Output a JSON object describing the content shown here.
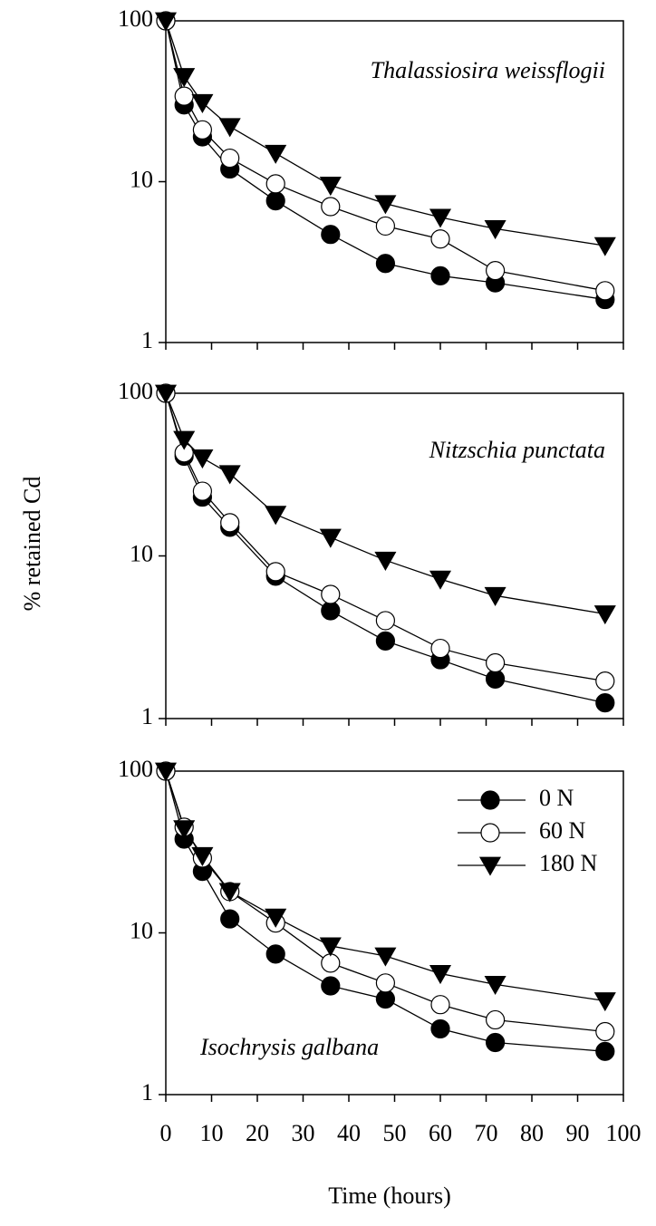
{
  "chart_data": [
    {
      "type": "line",
      "title": "Thalassiosira weissflogii",
      "title_loc": "upper right",
      "x": [
        0,
        4,
        8,
        14,
        24,
        36,
        48,
        60,
        72,
        96
      ],
      "series": [
        {
          "color": "#000000",
          "marker": "o",
          "values": [
            100,
            30,
            19,
            12,
            7.6,
            4.7,
            3.1,
            2.6,
            2.35,
            1.85
          ]
        },
        {
          "color": "#ffffff",
          "marker": "o",
          "values": [
            100,
            34,
            21,
            14,
            9.7,
            7,
            5.3,
            4.4,
            2.8,
            2.1
          ]
        },
        {
          "color": "#000000",
          "marker": "v",
          "values": [
            100,
            45,
            31,
            22,
            15,
            9.5,
            7.3,
            6,
            5.1,
            4
          ]
        }
      ],
      "xlim": [
        0,
        100
      ],
      "xticks": [
        0,
        10,
        20,
        30,
        40,
        50,
        60,
        70,
        80,
        90,
        100
      ],
      "ylim": [
        1,
        100
      ],
      "yticks": [
        1,
        10,
        100
      ],
      "log_y": true
    },
    {
      "type": "line",
      "title": "Nitzschia punctata",
      "title_loc": "upper right",
      "ylabel": "% retained Cd",
      "x": [
        0,
        4,
        8,
        14,
        24,
        36,
        48,
        60,
        72,
        96
      ],
      "series": [
        {
          "color": "#000000",
          "marker": "o",
          "values": [
            100,
            41,
            23,
            15,
            7.5,
            4.6,
            3,
            2.3,
            1.75,
            1.25
          ]
        },
        {
          "color": "#ffffff",
          "marker": "o",
          "values": [
            100,
            43,
            25,
            16,
            8,
            5.8,
            4,
            2.7,
            2.2,
            1.7
          ]
        },
        {
          "color": "#000000",
          "marker": "v",
          "values": [
            100,
            52,
            40,
            32,
            18,
            13,
            9.4,
            7.2,
            5.7,
            4.4
          ]
        }
      ],
      "xlim": [
        0,
        100
      ],
      "xticks": [
        0,
        10,
        20,
        30,
        40,
        50,
        60,
        70,
        80,
        90,
        100
      ],
      "ylim": [
        1,
        100
      ],
      "yticks": [
        1,
        10,
        100
      ],
      "log_y": true
    },
    {
      "type": "line",
      "title": "Isochrysis galbana",
      "title_loc": "lower left",
      "xlabel": "Time (hours)",
      "legend": "upper right",
      "x": [
        0,
        4,
        8,
        14,
        24,
        36,
        48,
        60,
        72,
        96
      ],
      "series": [
        {
          "name": "0 N",
          "color": "#000000",
          "marker": "o",
          "values": [
            100,
            38,
            24,
            12.2,
            7.4,
            4.7,
            3.9,
            2.55,
            2.1,
            1.85
          ]
        },
        {
          "name": "60 N",
          "color": "#ffffff",
          "marker": "o",
          "values": [
            100,
            45,
            29,
            18,
            11.5,
            6.5,
            4.9,
            3.6,
            2.9,
            2.45
          ]
        },
        {
          "name": "180 N",
          "color": "#000000",
          "marker": "v",
          "values": [
            100,
            44,
            30,
            18,
            12.5,
            8.3,
            7.2,
            5.6,
            4.8,
            3.8
          ]
        }
      ],
      "xlim": [
        0,
        100
      ],
      "xticks": [
        0,
        10,
        20,
        30,
        40,
        50,
        60,
        70,
        80,
        90,
        100
      ],
      "ylim": [
        1,
        100
      ],
      "yticks": [
        1,
        10,
        100
      ],
      "log_y": true
    }
  ]
}
